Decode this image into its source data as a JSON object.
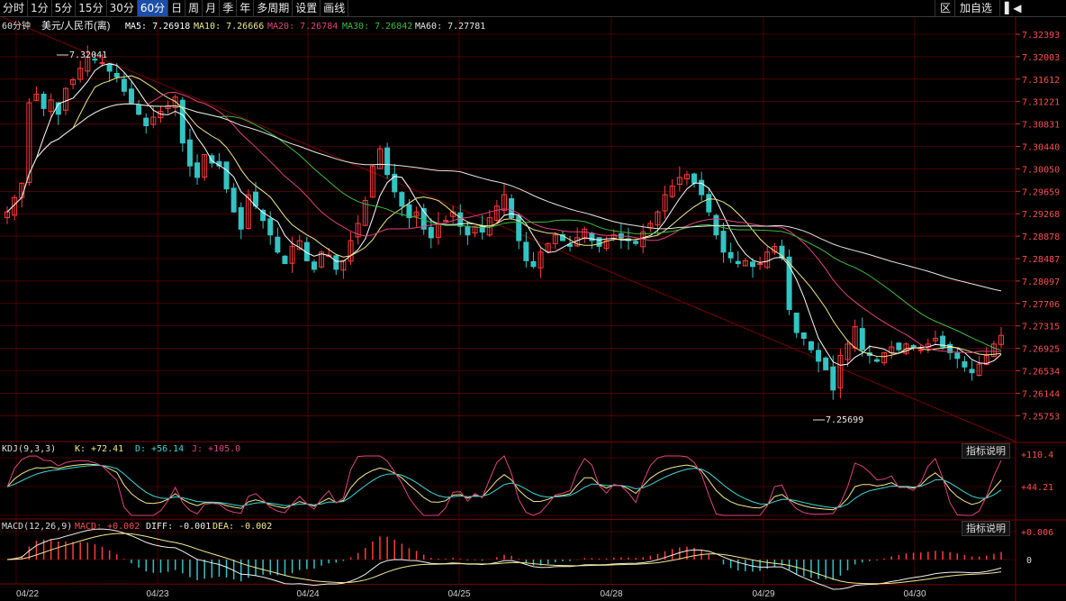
{
  "toolbar": {
    "periods": [
      "分时",
      "1分",
      "5分",
      "15分",
      "30分",
      "60分",
      "日",
      "周",
      "月",
      "季",
      "年",
      "多周期"
    ],
    "active": "60分",
    "settings": "设置",
    "draw": "画线",
    "zone": "区",
    "add_watch": "加自选"
  },
  "main": {
    "period_label": "60分钟",
    "symbol": "美元/人民币(离)",
    "ma": [
      {
        "label": "MA5:",
        "value": "7.26918",
        "color": "#ffffff"
      },
      {
        "label": "MA10:",
        "value": "7.26666",
        "color": "#f2e98a"
      },
      {
        "label": "MA20:",
        "value": "7.26784",
        "color": "#e0427f"
      },
      {
        "label": "MA30:",
        "value": "7.26842",
        "color": "#3dbb3d"
      },
      {
        "label": "MA60:",
        "value": "7.27781",
        "color": "#e6e6e6"
      }
    ],
    "high_marker": "7.32041",
    "low_marker": "7.25699"
  },
  "kdj": {
    "title": "KDJ(9,3,3)",
    "k_label": "K: +72.41",
    "d_label": "D: +56.14",
    "j_label": "J: +105.0",
    "axis": [
      "+110.4",
      "+44.21"
    ],
    "help": "指标说明"
  },
  "macd": {
    "title": "MACD(12,26,9)",
    "macd_label": "MACD: +0.002",
    "diff_label": "DIFF: -0.001",
    "dea_label": "DEA: -0.002",
    "axis": [
      "+0.006",
      "0"
    ],
    "help": "指标说明"
  },
  "colors": {
    "up": "#ff3b3b",
    "down": "#34c3c3",
    "grid": "#7a0000"
  },
  "chart_data": {
    "type": "candlestick",
    "price_axis": [
      "7.32393",
      "7.32003",
      "7.31612",
      "7.31221",
      "7.30831",
      "7.30440",
      "7.30050",
      "7.29659",
      "7.29268",
      "7.28878",
      "7.28487",
      "7.28097",
      "7.27706",
      "7.27315",
      "7.26925",
      "7.26534",
      "7.26144",
      "7.25753"
    ],
    "date_labels": [
      "04/22",
      "04/23",
      "04/24",
      "04/25",
      "04/28",
      "04/29",
      "04/30"
    ],
    "high": 7.32041,
    "low": 7.25699
  }
}
